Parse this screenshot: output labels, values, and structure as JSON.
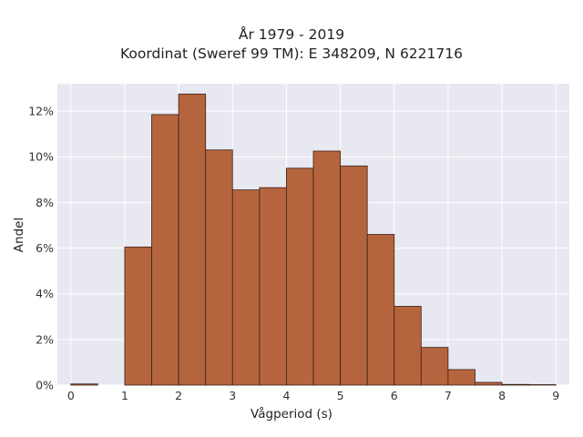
{
  "chart_data": {
    "type": "bar",
    "title": "År 1979 - 2019",
    "subtitle": "Koordinat (Sweref 99 TM): E 348209, N 6221716",
    "xlabel": "Vågperiod (s)",
    "ylabel": "Andel",
    "xlim": [
      -0.25,
      9.25
    ],
    "ylim": [
      0,
      13.2
    ],
    "x_ticks": [
      0,
      1,
      2,
      3,
      4,
      5,
      6,
      7,
      8,
      9
    ],
    "y_ticks": [
      0,
      2,
      4,
      6,
      8,
      10,
      12
    ],
    "y_tick_format": "percent",
    "bin_width": 0.5,
    "bins": [
      {
        "x0": 0.0,
        "x1": 0.5,
        "value": 0.05
      },
      {
        "x0": 0.5,
        "x1": 1.0,
        "value": 0.0
      },
      {
        "x0": 1.0,
        "x1": 1.5,
        "value": 6.05
      },
      {
        "x0": 1.5,
        "x1": 2.0,
        "value": 11.85
      },
      {
        "x0": 2.0,
        "x1": 2.5,
        "value": 12.75
      },
      {
        "x0": 2.5,
        "x1": 3.0,
        "value": 10.3
      },
      {
        "x0": 3.0,
        "x1": 3.5,
        "value": 8.55
      },
      {
        "x0": 3.5,
        "x1": 4.0,
        "value": 8.65
      },
      {
        "x0": 4.0,
        "x1": 4.5,
        "value": 9.5
      },
      {
        "x0": 4.5,
        "x1": 5.0,
        "value": 10.25
      },
      {
        "x0": 5.0,
        "x1": 5.5,
        "value": 9.6
      },
      {
        "x0": 5.5,
        "x1": 6.0,
        "value": 6.6
      },
      {
        "x0": 6.0,
        "x1": 6.5,
        "value": 3.45
      },
      {
        "x0": 6.5,
        "x1": 7.0,
        "value": 1.65
      },
      {
        "x0": 7.0,
        "x1": 7.5,
        "value": 0.68
      },
      {
        "x0": 7.5,
        "x1": 8.0,
        "value": 0.12
      },
      {
        "x0": 8.0,
        "x1": 8.5,
        "value": 0.03
      },
      {
        "x0": 8.5,
        "x1": 9.0,
        "value": 0.02
      }
    ],
    "grid": true,
    "colors": {
      "bar_fill": "#b5653d",
      "bar_edge": "#3a2015",
      "plot_bg": "#e8e8f1",
      "grid": "#ffffff"
    }
  }
}
